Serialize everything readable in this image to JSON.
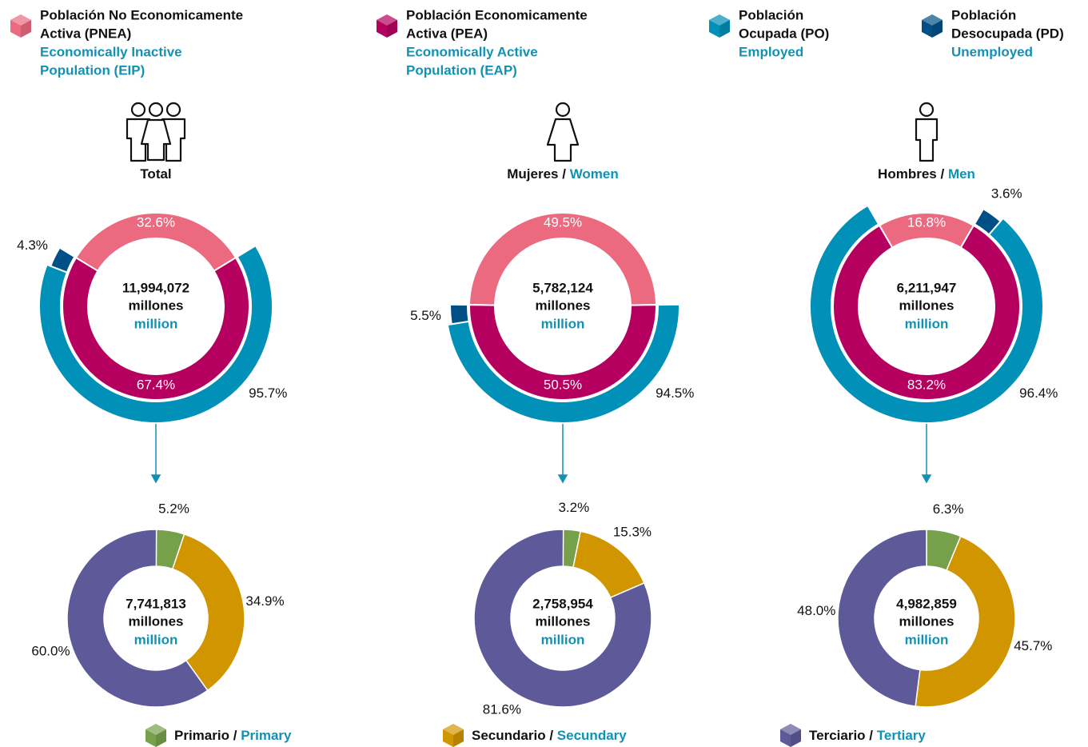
{
  "separator": "/",
  "unit_es": "millones",
  "unit_en": "million",
  "legend_top": [
    {
      "es": [
        "Población No Economicamente",
        "Activa (PNEA)"
      ],
      "en": [
        "Economically Inactive",
        "Population (EIP)"
      ],
      "color": "#ec6a80"
    },
    {
      "es": [
        "Población Economicamente",
        "Activa (PEA)"
      ],
      "en": [
        "Economically Active",
        "Population (EAP)"
      ],
      "color": "#b5005f"
    },
    {
      "es": [
        "Población",
        "Ocupada (PO)"
      ],
      "en": [
        "Employed"
      ],
      "color": "#0090b8"
    },
    {
      "es": [
        "Población",
        "Desocupada (PD)"
      ],
      "en": [
        "Unemployed"
      ],
      "color": "#004f86"
    }
  ],
  "legend_bottom": [
    {
      "es": "Primario",
      "en": "Primary",
      "color": "#77a04a"
    },
    {
      "es": "Secundario",
      "en": "Secundary",
      "color": "#d19500"
    },
    {
      "es": "Terciario",
      "en": "Tertiary",
      "color": "#5e5a9a"
    }
  ],
  "chart_data": [
    {
      "type": "nested-donut",
      "title_es": "Total",
      "total": "11,994,072",
      "pd_side": "left",
      "values": [
        32.6,
        67.4
      ],
      "value_labels": [
        "32.6%",
        "67.4%"
      ],
      "outer_values": [
        95.7,
        4.3
      ],
      "outer_value_labels": [
        "95.7%",
        "4.3%"
      ]
    },
    {
      "type": "nested-donut",
      "title_es": "Mujeres",
      "title_en": "Women",
      "total": "5,782,124",
      "pd_side": "left",
      "values": [
        49.5,
        50.5
      ],
      "value_labels": [
        "49.5%",
        "50.5%"
      ],
      "outer_values": [
        94.5,
        5.5
      ],
      "outer_value_labels": [
        "94.5%",
        "5.5%"
      ]
    },
    {
      "type": "nested-donut",
      "title_es": "Hombres",
      "title_en": "Men",
      "total": "6,211,947",
      "pd_side": "right",
      "values": [
        16.8,
        83.2
      ],
      "value_labels": [
        "16.8%",
        "83.2%"
      ],
      "outer_values": [
        96.4,
        3.6
      ],
      "outer_value_labels": [
        "96.4%",
        "3.6%"
      ]
    },
    {
      "type": "donut",
      "total": "7,741,813",
      "values": [
        5.2,
        34.9,
        60.0
      ],
      "value_labels": [
        "5.2%",
        "34.9%",
        "60.0%"
      ]
    },
    {
      "type": "donut",
      "total": "2,758,954",
      "values": [
        3.2,
        15.3,
        81.6
      ],
      "value_labels": [
        "3.2%",
        "15.3%",
        "81.6%"
      ]
    },
    {
      "type": "donut",
      "total": "4,982,859",
      "values": [
        6.3,
        45.7,
        48.0
      ],
      "value_labels": [
        "6.3%",
        "45.7%",
        "48.0%"
      ]
    }
  ]
}
